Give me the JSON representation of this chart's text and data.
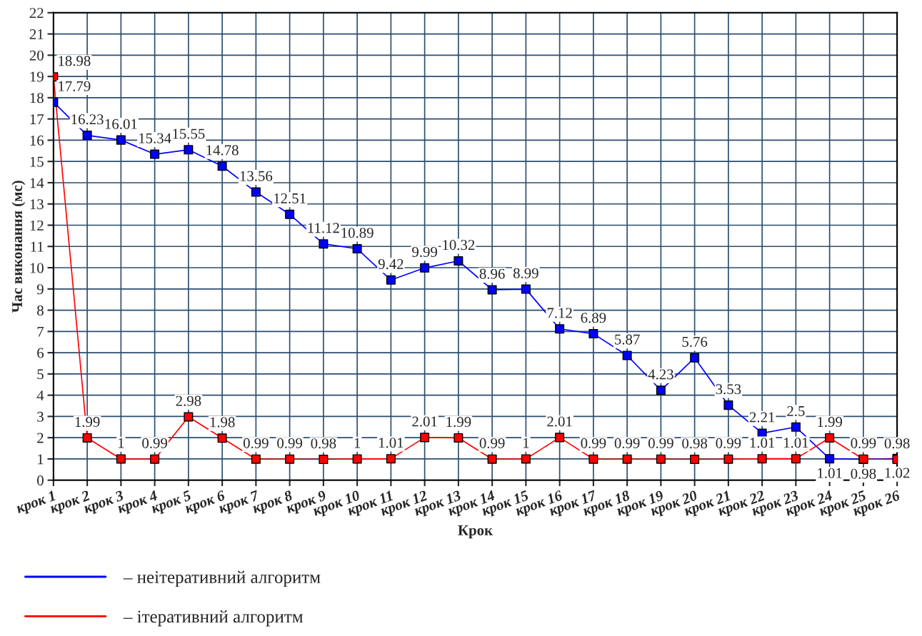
{
  "chart_data": {
    "type": "line",
    "xlabel": "Крок",
    "ylabel": "Час виконання (мс)",
    "categories": [
      "крок 1",
      "крок 2",
      "крок 3",
      "крок 4",
      "крок 5",
      "крок 6",
      "крок 7",
      "крок 8",
      "крок 9",
      "крок 10",
      "крок 11",
      "крок 12",
      "крок 13",
      "крок 14",
      "крок 15",
      "крок 16",
      "крок 17",
      "крок 18",
      "крок 19",
      "крок 20",
      "крок 21",
      "крок 22",
      "крок 23",
      "крок 24",
      "крок 25",
      "крок 26"
    ],
    "series": [
      {
        "name": "– неітеративний алгоритм",
        "color": "#0000ff",
        "values": [
          17.79,
          16.23,
          16.01,
          15.34,
          15.55,
          14.78,
          13.56,
          12.51,
          11.12,
          10.89,
          9.42,
          9.99,
          10.32,
          8.96,
          8.99,
          7.12,
          6.89,
          5.87,
          4.23,
          5.76,
          3.53,
          2.21,
          2.5,
          1.01,
          0.98,
          1.02
        ]
      },
      {
        "name": "– ітеративний алгоритм",
        "color": "#ff0000",
        "values": [
          18.98,
          1.99,
          1,
          0.99,
          2.98,
          1.98,
          0.99,
          0.99,
          0.98,
          1,
          1.01,
          2.01,
          1.99,
          0.99,
          1,
          2.01,
          0.99,
          0.99,
          0.99,
          0.98,
          0.99,
          1.01,
          1.01,
          1.99,
          0.99,
          0.98
        ]
      }
    ],
    "ylim": [
      0,
      22
    ],
    "yticks": [
      0,
      1,
      2,
      3,
      4,
      5,
      6,
      7,
      8,
      9,
      10,
      11,
      12,
      13,
      14,
      15,
      16,
      17,
      18,
      19,
      20,
      21,
      22
    ],
    "grid": true,
    "legend": "bottom left",
    "marker": "square",
    "line_style": "solid",
    "data_labels": true
  }
}
